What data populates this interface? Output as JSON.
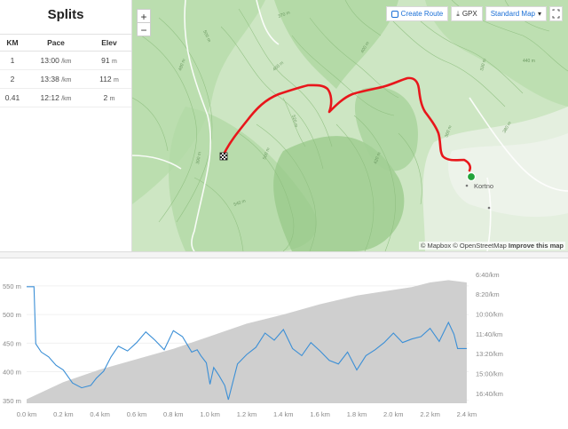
{
  "splits": {
    "title": "Splits",
    "headers": [
      "KM",
      "Pace",
      "Elev"
    ],
    "rows": [
      {
        "km": "1",
        "pace": "13:00",
        "pace_unit": "/km",
        "elev": "91",
        "elev_unit": "m"
      },
      {
        "km": "2",
        "pace": "13:38",
        "pace_unit": "/km",
        "elev": "112",
        "elev_unit": "m"
      },
      {
        "km": "0.41",
        "pace": "12:12",
        "pace_unit": "/km",
        "elev": "2",
        "elev_unit": "m"
      }
    ]
  },
  "map": {
    "zoom_in": "+",
    "zoom_out": "−",
    "create_route": "Create Route",
    "gpx": "GPX",
    "map_style": "Standard Map",
    "attribution_mapbox": "© Mapbox",
    "attribution_osm": "© OpenStreetMap",
    "improve": "Improve this map",
    "place_label": "Kortno",
    "contour_labels": [
      "370 m",
      "500 m",
      "480 m",
      "460 m",
      "400 m",
      "440 m",
      "520 m",
      "390 m",
      "540 m",
      "560 m",
      "330 m",
      "420 m",
      "360 m",
      "380 m"
    ],
    "route_color": "#e8161b",
    "start_color": "#22a33a"
  },
  "chart_data": {
    "type": "area",
    "x_ticks": [
      "0.0 km",
      "0.2 km",
      "0.4 km",
      "0.6 km",
      "0.8 km",
      "1.0 km",
      "1.2 km",
      "1.4 km",
      "1.6 km",
      "1.8 km",
      "2.0 km",
      "2.2 km",
      "2.4 km"
    ],
    "y_left_ticks": [
      "550 m",
      "500 m",
      "450 m",
      "400 m",
      "350 m"
    ],
    "y_right_ticks": [
      "6:40/km",
      "8:20/km",
      "10:00/km",
      "11:40/km",
      "13:20/km",
      "15:00/km",
      "16:40/km"
    ],
    "xlim": [
      0,
      2.41
    ],
    "elevation_ylim": [
      345,
      570
    ],
    "pace_ylim_min_per_km": [
      6.67,
      17.5
    ],
    "elevation": {
      "x": [
        0.0,
        0.2,
        0.4,
        0.6,
        0.8,
        1.0,
        1.2,
        1.4,
        1.6,
        1.8,
        2.0,
        2.1,
        2.2,
        2.3,
        2.4
      ],
      "y": [
        352,
        382,
        404,
        422,
        440,
        462,
        484,
        500,
        518,
        533,
        543,
        548,
        556,
        560,
        556
      ]
    },
    "pace": {
      "x": [
        0.0,
        0.04,
        0.05,
        0.08,
        0.12,
        0.16,
        0.2,
        0.25,
        0.3,
        0.35,
        0.38,
        0.42,
        0.46,
        0.5,
        0.55,
        0.6,
        0.65,
        0.7,
        0.75,
        0.8,
        0.85,
        0.9,
        0.93,
        0.95,
        0.98,
        1.0,
        1.02,
        1.05,
        1.08,
        1.1,
        1.15,
        1.2,
        1.25,
        1.3,
        1.35,
        1.4,
        1.45,
        1.5,
        1.55,
        1.6,
        1.65,
        1.7,
        1.75,
        1.8,
        1.85,
        1.9,
        1.95,
        2.0,
        2.05,
        2.1,
        2.15,
        2.2,
        2.25,
        2.3,
        2.33,
        2.35,
        2.4
      ],
      "y": [
        7.7,
        7.7,
        12.5,
        13.2,
        13.6,
        14.3,
        14.7,
        15.8,
        16.2,
        16.0,
        15.4,
        14.8,
        13.6,
        12.7,
        13.1,
        12.4,
        11.5,
        12.2,
        13.0,
        11.4,
        11.9,
        13.2,
        13.0,
        13.5,
        14.1,
        15.9,
        14.5,
        15.2,
        16.0,
        17.2,
        14.2,
        13.4,
        12.8,
        11.6,
        12.2,
        11.3,
        12.9,
        13.5,
        12.4,
        13.1,
        13.9,
        14.2,
        13.2,
        14.7,
        13.5,
        13.0,
        12.4,
        11.6,
        12.4,
        12.1,
        11.9,
        11.2,
        12.3,
        10.7,
        11.7,
        12.9,
        12.9
      ]
    }
  }
}
